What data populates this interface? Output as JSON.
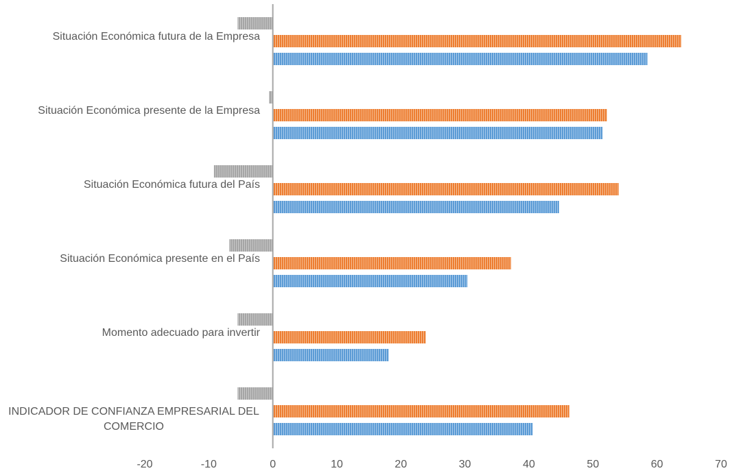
{
  "chart_data": {
    "type": "bar",
    "orientation": "horizontal",
    "categories": [
      "INDICADOR DE CONFIANZA EMPRESARIAL DEL COMERCIO",
      "Momento adecuado para invertir",
      "Situación Económica presente en el País",
      "Situación Económica futura del País",
      "Situación Económica presente de la Empresa",
      "Situación Económica futura de la Empresa"
    ],
    "category_label_lines": [
      [
        "INDICADOR DE CONFIANZA EMPRESARIAL DEL",
        "COMERCIO"
      ],
      [
        "Momento adecuado para invertir"
      ],
      [
        "Situación Económica presente en el País"
      ],
      [
        "Situación Económica futura del País"
      ],
      [
        "Situación Económica presente de la Empresa"
      ],
      [
        "Situación Económica futura de la Empresa"
      ]
    ],
    "series": [
      {
        "values": [
          -5.5,
          -5.5,
          -6.8,
          -9.2,
          -0.6,
          -5.5
        ],
        "color": "#a5a5a5"
      },
      {
        "values": [
          46.3,
          23.9,
          37.2,
          54.0,
          52.2,
          63.8
        ],
        "color": "#ed7d31"
      },
      {
        "values": [
          40.6,
          18.1,
          30.4,
          44.7,
          51.5,
          58.5
        ],
        "color": "#5b9bd5"
      }
    ],
    "xlim": [
      -20,
      70
    ],
    "xticks": [
      "-20",
      "-10",
      "0",
      "10",
      "20",
      "30",
      "40",
      "50",
      "60",
      "70"
    ],
    "grid": false,
    "title": "",
    "xlabel": "",
    "ylabel": ""
  }
}
